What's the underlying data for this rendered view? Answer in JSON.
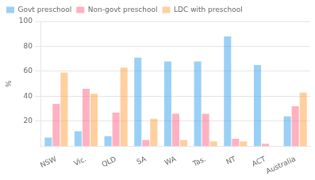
{
  "chart_data": {
    "type": "bar",
    "categories": [
      "NSW",
      "Vic.",
      "QLD",
      "SA",
      "WA",
      "Tas.",
      "NT",
      "ACT",
      "Australia"
    ],
    "series": [
      {
        "name": "Govt preschool",
        "values": [
          7,
          12,
          8,
          71,
          68,
          68,
          88,
          65,
          24
        ]
      },
      {
        "name": "Non-govt preschool",
        "values": [
          34,
          46,
          27,
          5,
          26,
          26,
          6,
          2,
          32
        ]
      },
      {
        "name": "LDC with preschool",
        "values": [
          59,
          42,
          63,
          22,
          5,
          4,
          4,
          0,
          43
        ]
      }
    ],
    "ylabel": "%",
    "ylim": [
      0,
      100
    ],
    "yticks": [
      20,
      40,
      60,
      80,
      100
    ],
    "grid": true,
    "legend": "upper left"
  }
}
